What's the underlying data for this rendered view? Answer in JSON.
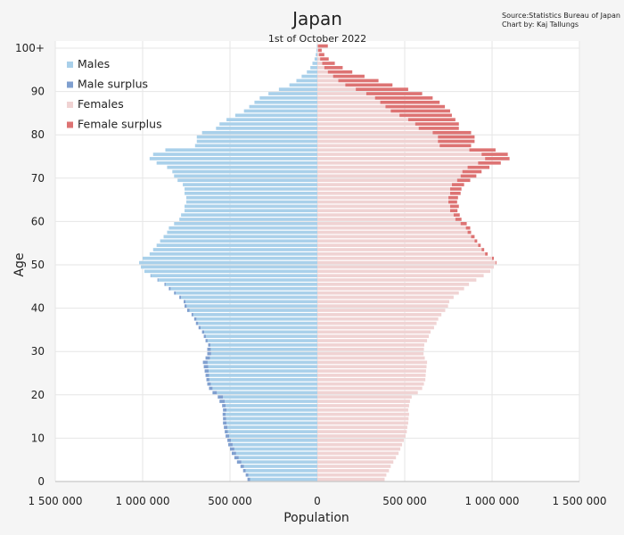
{
  "chart_data": {
    "type": "bar",
    "orientation": "horizontal",
    "title": "Japan",
    "subtitle": "1st of October 2022",
    "source": "Source:Statistics Bureau of Japan",
    "credit": "Chart by: Kaj Tallungs",
    "xlabel": "Population",
    "ylabel": "Age",
    "xlim": [
      -1500000,
      1500000
    ],
    "ylim": [
      0,
      100
    ],
    "x_ticks": [
      {
        "value": -1500000,
        "label": "1 500 000"
      },
      {
        "value": -1000000,
        "label": "1 000 000"
      },
      {
        "value": -500000,
        "label": "500 000"
      },
      {
        "value": 0,
        "label": "0"
      },
      {
        "value": 500000,
        "label": "500 000"
      },
      {
        "value": 1000000,
        "label": "1 000 000"
      },
      {
        "value": 1500000,
        "label": "1 500 000"
      }
    ],
    "y_ticks": [
      {
        "value": 0,
        "label": "0"
      },
      {
        "value": 10,
        "label": "10"
      },
      {
        "value": 20,
        "label": "20"
      },
      {
        "value": 30,
        "label": "30"
      },
      {
        "value": 40,
        "label": "40"
      },
      {
        "value": 50,
        "label": "50"
      },
      {
        "value": 60,
        "label": "60"
      },
      {
        "value": 70,
        "label": "70"
      },
      {
        "value": 80,
        "label": "80"
      },
      {
        "value": 90,
        "label": "90"
      },
      {
        "value": 100,
        "label": "100+"
      }
    ],
    "grid": true,
    "legend_position": "top-left",
    "legend": [
      {
        "name": "Males",
        "color": "#a9d0ea"
      },
      {
        "name": "Male surplus",
        "color": "#7f9fcf"
      },
      {
        "name": "Females",
        "color": "#f0d3d3"
      },
      {
        "name": "Female surplus",
        "color": "#dd7373"
      }
    ],
    "age_groups": [
      0,
      1,
      2,
      3,
      4,
      5,
      6,
      7,
      8,
      9,
      10,
      11,
      12,
      13,
      14,
      15,
      16,
      17,
      18,
      19,
      20,
      21,
      22,
      23,
      24,
      25,
      26,
      27,
      28,
      29,
      30,
      31,
      32,
      33,
      34,
      35,
      36,
      37,
      38,
      39,
      40,
      41,
      42,
      43,
      44,
      45,
      46,
      47,
      48,
      49,
      50,
      51,
      52,
      53,
      54,
      55,
      56,
      57,
      58,
      59,
      60,
      61,
      62,
      63,
      64,
      65,
      66,
      67,
      68,
      69,
      70,
      71,
      72,
      73,
      74,
      75,
      76,
      77,
      78,
      79,
      80,
      81,
      82,
      83,
      84,
      85,
      86,
      87,
      88,
      89,
      90,
      91,
      92,
      93,
      94,
      95,
      96,
      97,
      98,
      99,
      "100+"
    ],
    "series": [
      {
        "name": "Males",
        "values": [
          400000,
          410000,
          425000,
          440000,
          460000,
          475000,
          490000,
          500000,
          510000,
          515000,
          525000,
          530000,
          535000,
          540000,
          540000,
          542000,
          540000,
          545000,
          560000,
          570000,
          600000,
          620000,
          630000,
          635000,
          640000,
          645000,
          650000,
          655000,
          640000,
          630000,
          630000,
          625000,
          640000,
          650000,
          660000,
          680000,
          695000,
          705000,
          720000,
          745000,
          760000,
          765000,
          790000,
          820000,
          850000,
          875000,
          915000,
          955000,
          990000,
          1010000,
          1020000,
          1000000,
          960000,
          940000,
          920000,
          900000,
          880000,
          860000,
          850000,
          820000,
          790000,
          780000,
          760000,
          760000,
          750000,
          750000,
          760000,
          760000,
          770000,
          800000,
          820000,
          830000,
          860000,
          920000,
          960000,
          940000,
          870000,
          700000,
          690000,
          690000,
          660000,
          580000,
          560000,
          520000,
          470000,
          420000,
          390000,
          360000,
          330000,
          280000,
          220000,
          160000,
          120000,
          90000,
          60000,
          40000,
          28000,
          16000,
          9000,
          5000,
          3000
        ]
      },
      {
        "name": "Females",
        "values": [
          385000,
          395000,
          410000,
          420000,
          435000,
          450000,
          465000,
          475000,
          485000,
          495000,
          505000,
          512000,
          515000,
          520000,
          522000,
          525000,
          520000,
          525000,
          530000,
          540000,
          575000,
          600000,
          610000,
          618000,
          620000,
          622000,
          625000,
          628000,
          615000,
          608000,
          610000,
          612000,
          628000,
          638000,
          648000,
          668000,
          682000,
          692000,
          710000,
          732000,
          748000,
          755000,
          780000,
          810000,
          840000,
          868000,
          910000,
          952000,
          990000,
          1010000,
          1025000,
          1010000,
          975000,
          955000,
          935000,
          915000,
          900000,
          880000,
          875000,
          855000,
          825000,
          815000,
          802000,
          810000,
          800000,
          805000,
          820000,
          825000,
          840000,
          875000,
          910000,
          940000,
          985000,
          1050000,
          1100000,
          1090000,
          1020000,
          880000,
          900000,
          900000,
          880000,
          810000,
          810000,
          790000,
          770000,
          760000,
          730000,
          700000,
          660000,
          600000,
          520000,
          430000,
          350000,
          270000,
          200000,
          145000,
          100000,
          65000,
          40000,
          25000,
          60000
        ]
      }
    ]
  }
}
